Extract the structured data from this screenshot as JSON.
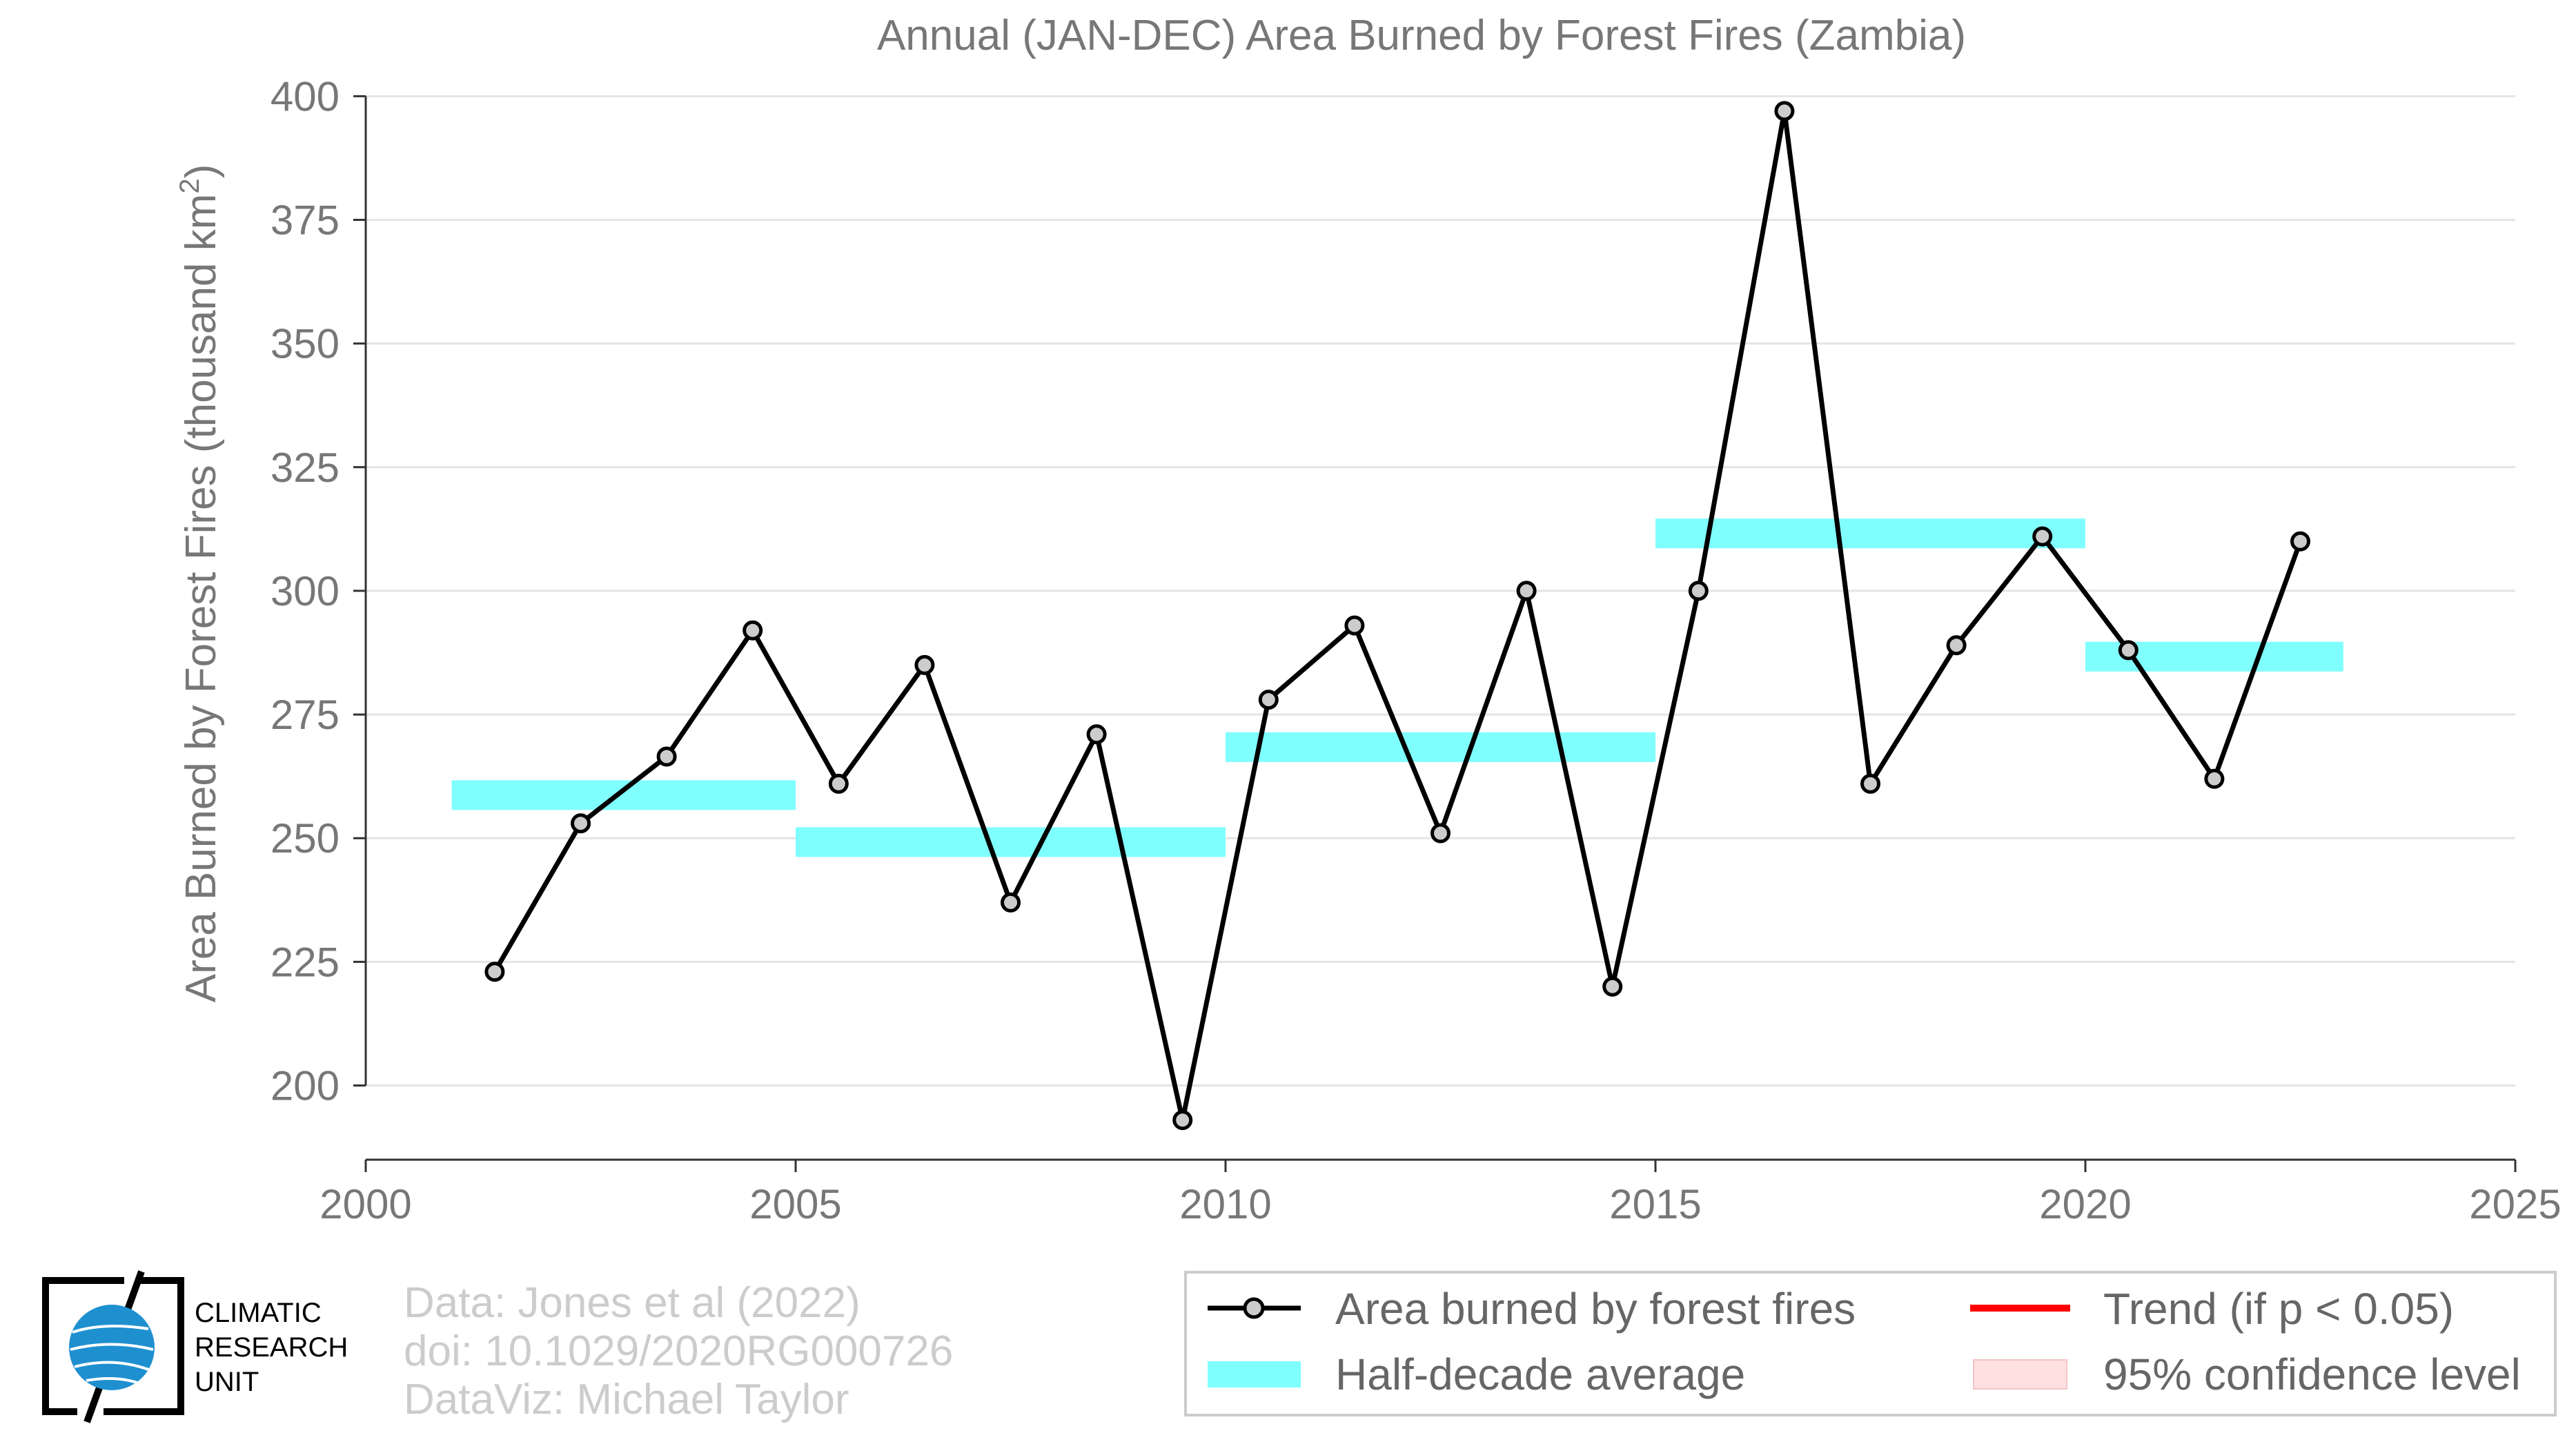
{
  "chart_data": {
    "type": "line",
    "title": "Annual (JAN-DEC) Area Burned by Forest Fires (Zambia)",
    "ylabel": "Area Burned by Forest Fires (thousand km",
    "ylabel_sup": "2",
    "ylabel_close": ")",
    "xlabel": "",
    "xlim": [
      2000,
      2025
    ],
    "ylim": [
      185,
      402
    ],
    "x_ticks": [
      2000,
      2005,
      2010,
      2015,
      2020,
      2025
    ],
    "y_ticks": [
      200,
      225,
      250,
      275,
      300,
      325,
      350,
      375,
      400
    ],
    "grid": true,
    "series": [
      {
        "name": "Area burned by forest fires",
        "color": "#000000",
        "marker_fill": "#cccccc",
        "x": [
          2001.5,
          2002.5,
          2003.5,
          2004.5,
          2005.5,
          2006.5,
          2007.5,
          2008.5,
          2009.5,
          2010.5,
          2011.5,
          2012.5,
          2013.5,
          2014.5,
          2015.5,
          2016.5,
          2017.5,
          2018.5,
          2019.5,
          2020.5,
          2021.5,
          2022.5
        ],
        "values": [
          223,
          253,
          266.5,
          292,
          261,
          285,
          237,
          271,
          193,
          278,
          293,
          251,
          300,
          220,
          300,
          397,
          261,
          289,
          311,
          288,
          262,
          310
        ]
      }
    ],
    "half_decade_averages": {
      "name": "Half-decade average",
      "color": "#80ffff",
      "segments": [
        {
          "x0": 2001,
          "x1": 2005,
          "value": 258.7
        },
        {
          "x0": 2005,
          "x1": 2010,
          "value": 249.2
        },
        {
          "x0": 2010,
          "x1": 2015,
          "value": 268.4
        },
        {
          "x0": 2015,
          "x1": 2020,
          "value": 311.6
        },
        {
          "x0": 2020,
          "x1": 2023,
          "value": 286.7
        }
      ]
    },
    "legend": {
      "placement": "bottom-right",
      "items": [
        {
          "label": "Area burned by forest fires",
          "kind": "line-marker",
          "color": "#000000"
        },
        {
          "label": "Trend (if p < 0.05)",
          "kind": "line",
          "color": "#ff0000"
        },
        {
          "label": "Half-decade average",
          "kind": "band",
          "color": "#80ffff"
        },
        {
          "label": "95% confidence level",
          "kind": "band",
          "color": "#ffe0e0"
        }
      ]
    }
  },
  "credits": [
    "Data: Jones et al (2022)",
    "doi: 10.1029/2020RG000726",
    "DataViz: Michael Taylor"
  ],
  "logo": {
    "lines": [
      "CLIMATIC",
      "RESEARCH",
      "UNIT"
    ],
    "globe_color": "#1e90d0"
  }
}
